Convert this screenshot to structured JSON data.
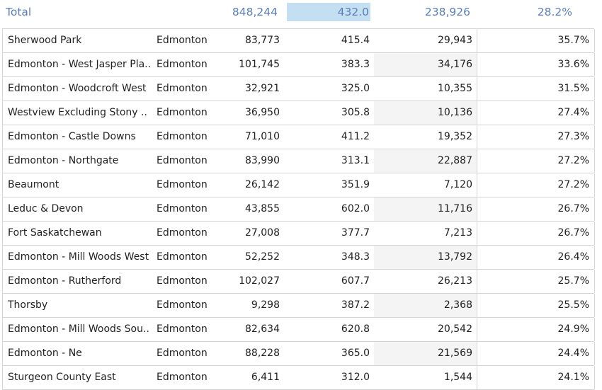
{
  "total": {
    "label": "Total",
    "population": "848,244",
    "rate": "432.0",
    "count": "238,926",
    "percent": "28.2%"
  },
  "rows": [
    {
      "name": "Sherwood Park",
      "city": "Edmonton",
      "population": "83,773",
      "rate": "415.4",
      "count": "29,943",
      "percent": "35.7%"
    },
    {
      "name": "Edmonton - West Jasper Pla..",
      "city": "Edmonton",
      "population": "101,745",
      "rate": "383.3",
      "count": "34,176",
      "percent": "33.6%"
    },
    {
      "name": "Edmonton - Woodcroft West",
      "city": "Edmonton",
      "population": "32,921",
      "rate": "325.0",
      "count": "10,355",
      "percent": "31.5%"
    },
    {
      "name": "Westview Excluding Stony ..",
      "city": "Edmonton",
      "population": "36,950",
      "rate": "305.8",
      "count": "10,136",
      "percent": "27.4%"
    },
    {
      "name": "Edmonton - Castle Downs",
      "city": "Edmonton",
      "population": "71,010",
      "rate": "411.2",
      "count": "19,352",
      "percent": "27.3%"
    },
    {
      "name": "Edmonton - Northgate",
      "city": "Edmonton",
      "population": "83,990",
      "rate": "313.1",
      "count": "22,887",
      "percent": "27.2%"
    },
    {
      "name": "Beaumont",
      "city": "Edmonton",
      "population": "26,142",
      "rate": "351.9",
      "count": "7,120",
      "percent": "27.2%"
    },
    {
      "name": "Leduc & Devon",
      "city": "Edmonton",
      "population": "43,855",
      "rate": "602.0",
      "count": "11,716",
      "percent": "26.7%"
    },
    {
      "name": "Fort Saskatchewan",
      "city": "Edmonton",
      "population": "27,008",
      "rate": "377.7",
      "count": "7,213",
      "percent": "26.7%"
    },
    {
      "name": "Edmonton - Mill Woods West",
      "city": "Edmonton",
      "population": "52,252",
      "rate": "348.3",
      "count": "13,792",
      "percent": "26.4%"
    },
    {
      "name": "Edmonton - Rutherford",
      "city": "Edmonton",
      "population": "102,027",
      "rate": "607.7",
      "count": "26,213",
      "percent": "25.7%"
    },
    {
      "name": "Thorsby",
      "city": "Edmonton",
      "population": "9,298",
      "rate": "387.2",
      "count": "2,368",
      "percent": "25.5%"
    },
    {
      "name": "Edmonton - Mill Woods Sou..",
      "city": "Edmonton",
      "population": "82,634",
      "rate": "620.8",
      "count": "20,542",
      "percent": "24.9%"
    },
    {
      "name": "Edmonton - Ne",
      "city": "Edmonton",
      "population": "88,228",
      "rate": "365.0",
      "count": "21,569",
      "percent": "24.4%"
    },
    {
      "name": "Sturgeon County East",
      "city": "Edmonton",
      "population": "6,411",
      "rate": "312.0",
      "count": "1,544",
      "percent": "24.1%"
    }
  ]
}
